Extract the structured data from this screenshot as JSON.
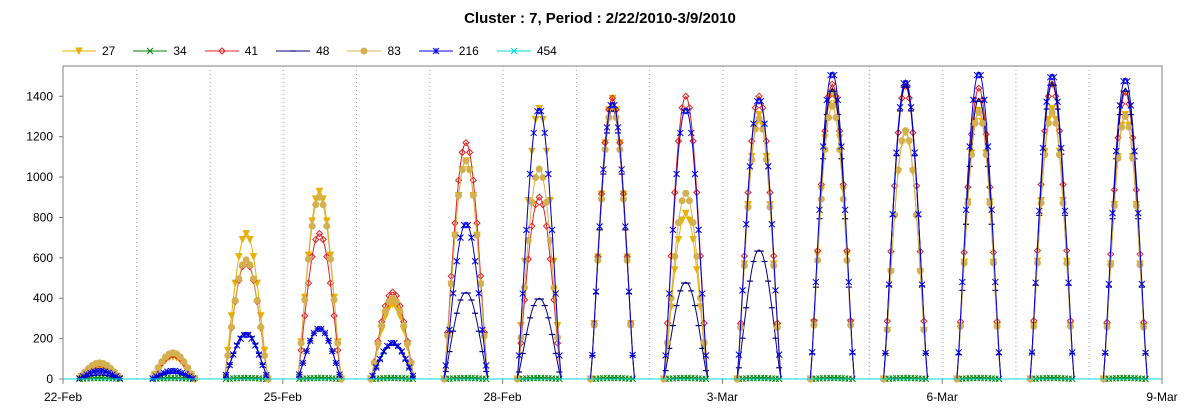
{
  "chart_data": {
    "type": "line",
    "title": "Cluster : 7, Period : 2/22/2010-3/9/2010",
    "xlabel": "",
    "ylabel": "",
    "ylim": [
      0,
      1550
    ],
    "xlim": [
      0,
      15
    ],
    "yticks": [
      0,
      200,
      400,
      600,
      800,
      1000,
      1200,
      1400
    ],
    "xticks": [
      {
        "label": "22-Feb",
        "x": 0
      },
      {
        "label": "25-Feb",
        "x": 3
      },
      {
        "label": "28-Feb",
        "x": 6
      },
      {
        "label": "3-Mar",
        "x": 9
      },
      {
        "label": "6-Mar",
        "x": 12
      },
      {
        "label": "9-Mar",
        "x": 15
      }
    ],
    "grid": "vertical dotted daily",
    "legend_position": "top-left",
    "series": [
      {
        "name": "27",
        "color": "#e8b000",
        "marker": "triangle-down",
        "peaks": [
          60,
          110,
          720,
          930,
          370,
          1080,
          1340,
          1390,
          820,
          1310,
          1420,
          1220,
          1330,
          1340,
          1310
        ]
      },
      {
        "name": "34",
        "color": "#008000",
        "marker": "x",
        "peaks": [
          5,
          5,
          5,
          5,
          5,
          5,
          5,
          5,
          5,
          5,
          5,
          5,
          5,
          5,
          5
        ]
      },
      {
        "name": "41",
        "color": "#e02020",
        "marker": "diamond",
        "peaks": [
          75,
          120,
          580,
          720,
          430,
          1170,
          900,
          1390,
          1400,
          1400,
          1460,
          1450,
          1440,
          1460,
          1420
        ]
      },
      {
        "name": "48",
        "color": "#000080",
        "marker": "dash",
        "peaks": [
          20,
          30,
          230,
          250,
          170,
          430,
          400,
          1340,
          480,
          640,
          1440,
          1460,
          1390,
          1470,
          1440
        ]
      },
      {
        "name": "83",
        "color": "#d4b050",
        "marker": "circle",
        "peaks": [
          80,
          130,
          590,
          900,
          400,
          1080,
          1040,
          1350,
          920,
          1290,
          1350,
          1230,
          1320,
          1320,
          1300
        ]
      },
      {
        "name": "216",
        "color": "#0000e0",
        "marker": "asterisk",
        "peaks": [
          40,
          40,
          220,
          250,
          180,
          770,
          1340,
          1370,
          1340,
          1390,
          1520,
          1480,
          1520,
          1510,
          1490
        ]
      },
      {
        "name": "454",
        "color": "#00d8d8",
        "marker": "x",
        "peaks": [
          0,
          0,
          0,
          0,
          0,
          0,
          0,
          0,
          0,
          0,
          0,
          0,
          0,
          0,
          0
        ]
      }
    ]
  }
}
